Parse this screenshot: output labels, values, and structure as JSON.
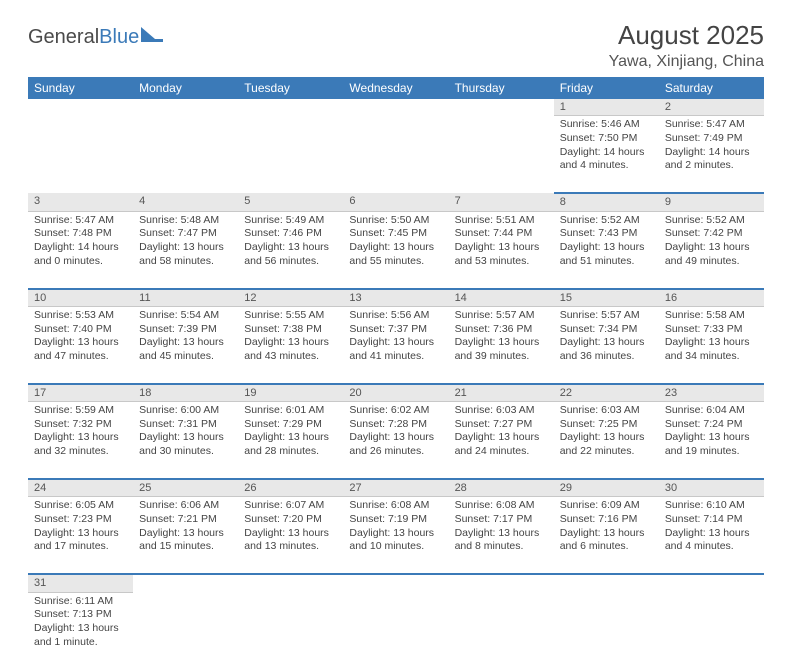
{
  "colors": {
    "header_bg": "#3b7ab8",
    "header_text": "#ffffff",
    "daynum_bg": "#e8e8e8",
    "row_border": "#3b7ab8",
    "body_text": "#444444",
    "background": "#ffffff"
  },
  "logo": {
    "text1": "General",
    "text2": "Blue"
  },
  "title": "August 2025",
  "location": "Yawa, Xinjiang, China",
  "day_headers": [
    "Sunday",
    "Monday",
    "Tuesday",
    "Wednesday",
    "Thursday",
    "Friday",
    "Saturday"
  ],
  "weeks": [
    [
      null,
      null,
      null,
      null,
      null,
      {
        "n": "1",
        "sr": "Sunrise: 5:46 AM",
        "ss": "Sunset: 7:50 PM",
        "dl": "Daylight: 14 hours and 4 minutes."
      },
      {
        "n": "2",
        "sr": "Sunrise: 5:47 AM",
        "ss": "Sunset: 7:49 PM",
        "dl": "Daylight: 14 hours and 2 minutes."
      }
    ],
    [
      {
        "n": "3",
        "sr": "Sunrise: 5:47 AM",
        "ss": "Sunset: 7:48 PM",
        "dl": "Daylight: 14 hours and 0 minutes."
      },
      {
        "n": "4",
        "sr": "Sunrise: 5:48 AM",
        "ss": "Sunset: 7:47 PM",
        "dl": "Daylight: 13 hours and 58 minutes."
      },
      {
        "n": "5",
        "sr": "Sunrise: 5:49 AM",
        "ss": "Sunset: 7:46 PM",
        "dl": "Daylight: 13 hours and 56 minutes."
      },
      {
        "n": "6",
        "sr": "Sunrise: 5:50 AM",
        "ss": "Sunset: 7:45 PM",
        "dl": "Daylight: 13 hours and 55 minutes."
      },
      {
        "n": "7",
        "sr": "Sunrise: 5:51 AM",
        "ss": "Sunset: 7:44 PM",
        "dl": "Daylight: 13 hours and 53 minutes."
      },
      {
        "n": "8",
        "sr": "Sunrise: 5:52 AM",
        "ss": "Sunset: 7:43 PM",
        "dl": "Daylight: 13 hours and 51 minutes."
      },
      {
        "n": "9",
        "sr": "Sunrise: 5:52 AM",
        "ss": "Sunset: 7:42 PM",
        "dl": "Daylight: 13 hours and 49 minutes."
      }
    ],
    [
      {
        "n": "10",
        "sr": "Sunrise: 5:53 AM",
        "ss": "Sunset: 7:40 PM",
        "dl": "Daylight: 13 hours and 47 minutes."
      },
      {
        "n": "11",
        "sr": "Sunrise: 5:54 AM",
        "ss": "Sunset: 7:39 PM",
        "dl": "Daylight: 13 hours and 45 minutes."
      },
      {
        "n": "12",
        "sr": "Sunrise: 5:55 AM",
        "ss": "Sunset: 7:38 PM",
        "dl": "Daylight: 13 hours and 43 minutes."
      },
      {
        "n": "13",
        "sr": "Sunrise: 5:56 AM",
        "ss": "Sunset: 7:37 PM",
        "dl": "Daylight: 13 hours and 41 minutes."
      },
      {
        "n": "14",
        "sr": "Sunrise: 5:57 AM",
        "ss": "Sunset: 7:36 PM",
        "dl": "Daylight: 13 hours and 39 minutes."
      },
      {
        "n": "15",
        "sr": "Sunrise: 5:57 AM",
        "ss": "Sunset: 7:34 PM",
        "dl": "Daylight: 13 hours and 36 minutes."
      },
      {
        "n": "16",
        "sr": "Sunrise: 5:58 AM",
        "ss": "Sunset: 7:33 PM",
        "dl": "Daylight: 13 hours and 34 minutes."
      }
    ],
    [
      {
        "n": "17",
        "sr": "Sunrise: 5:59 AM",
        "ss": "Sunset: 7:32 PM",
        "dl": "Daylight: 13 hours and 32 minutes."
      },
      {
        "n": "18",
        "sr": "Sunrise: 6:00 AM",
        "ss": "Sunset: 7:31 PM",
        "dl": "Daylight: 13 hours and 30 minutes."
      },
      {
        "n": "19",
        "sr": "Sunrise: 6:01 AM",
        "ss": "Sunset: 7:29 PM",
        "dl": "Daylight: 13 hours and 28 minutes."
      },
      {
        "n": "20",
        "sr": "Sunrise: 6:02 AM",
        "ss": "Sunset: 7:28 PM",
        "dl": "Daylight: 13 hours and 26 minutes."
      },
      {
        "n": "21",
        "sr": "Sunrise: 6:03 AM",
        "ss": "Sunset: 7:27 PM",
        "dl": "Daylight: 13 hours and 24 minutes."
      },
      {
        "n": "22",
        "sr": "Sunrise: 6:03 AM",
        "ss": "Sunset: 7:25 PM",
        "dl": "Daylight: 13 hours and 22 minutes."
      },
      {
        "n": "23",
        "sr": "Sunrise: 6:04 AM",
        "ss": "Sunset: 7:24 PM",
        "dl": "Daylight: 13 hours and 19 minutes."
      }
    ],
    [
      {
        "n": "24",
        "sr": "Sunrise: 6:05 AM",
        "ss": "Sunset: 7:23 PM",
        "dl": "Daylight: 13 hours and 17 minutes."
      },
      {
        "n": "25",
        "sr": "Sunrise: 6:06 AM",
        "ss": "Sunset: 7:21 PM",
        "dl": "Daylight: 13 hours and 15 minutes."
      },
      {
        "n": "26",
        "sr": "Sunrise: 6:07 AM",
        "ss": "Sunset: 7:20 PM",
        "dl": "Daylight: 13 hours and 13 minutes."
      },
      {
        "n": "27",
        "sr": "Sunrise: 6:08 AM",
        "ss": "Sunset: 7:19 PM",
        "dl": "Daylight: 13 hours and 10 minutes."
      },
      {
        "n": "28",
        "sr": "Sunrise: 6:08 AM",
        "ss": "Sunset: 7:17 PM",
        "dl": "Daylight: 13 hours and 8 minutes."
      },
      {
        "n": "29",
        "sr": "Sunrise: 6:09 AM",
        "ss": "Sunset: 7:16 PM",
        "dl": "Daylight: 13 hours and 6 minutes."
      },
      {
        "n": "30",
        "sr": "Sunrise: 6:10 AM",
        "ss": "Sunset: 7:14 PM",
        "dl": "Daylight: 13 hours and 4 minutes."
      }
    ],
    [
      {
        "n": "31",
        "sr": "Sunrise: 6:11 AM",
        "ss": "Sunset: 7:13 PM",
        "dl": "Daylight: 13 hours and 1 minute."
      },
      null,
      null,
      null,
      null,
      null,
      null
    ]
  ]
}
